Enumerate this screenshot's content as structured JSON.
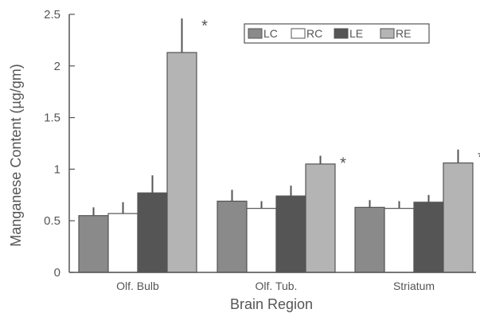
{
  "chart_data": {
    "type": "bar",
    "title": "",
    "xlabel": "Brain Region",
    "ylabel": "Manganese Content (µg/gm)",
    "ylim": [
      0,
      2.5
    ],
    "yticks": [
      {
        "value": 0,
        "label": "0"
      },
      {
        "value": 0.5,
        "label": "0.5"
      },
      {
        "value": 1,
        "label": "1"
      },
      {
        "value": 1.5,
        "label": "1.5"
      },
      {
        "value": 2,
        "label": "2"
      },
      {
        "value": 2.5,
        "label": "2.5"
      }
    ],
    "categories": [
      "Olf. Bulb",
      "Olf. Tub.",
      "Striatum"
    ],
    "series": [
      {
        "name": "LC",
        "color": "#8a8a8a",
        "values": [
          0.55,
          0.69,
          0.63
        ],
        "errors": [
          0.08,
          0.11,
          0.07
        ]
      },
      {
        "name": "RC",
        "color": "#ffffff",
        "values": [
          0.57,
          0.62,
          0.62
        ],
        "errors": [
          0.11,
          0.07,
          0.07
        ]
      },
      {
        "name": "LE",
        "color": "#555555",
        "values": [
          0.77,
          0.74,
          0.68
        ],
        "errors": [
          0.17,
          0.1,
          0.07
        ]
      },
      {
        "name": "RE",
        "color": "#b4b4b4",
        "values": [
          2.13,
          1.05,
          1.06
        ],
        "errors": [
          0.33,
          0.08,
          0.13
        ]
      }
    ],
    "significance": [
      {
        "category": 0,
        "series": 3,
        "label": "*"
      },
      {
        "category": 1,
        "series": 3,
        "label": "*"
      },
      {
        "category": 2,
        "series": 3,
        "label": "*"
      }
    ],
    "legend_position": "top-right",
    "grid": false
  }
}
